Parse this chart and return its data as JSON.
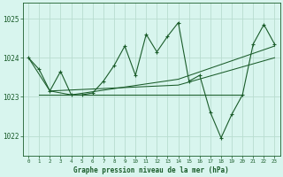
{
  "title": "Graphe pression niveau de la mer (hPa)",
  "bg_color": "#d8f5ee",
  "grid_color": "#b8ddd0",
  "line_color": "#1a5c2a",
  "x_min": -0.5,
  "x_max": 23.5,
  "y_min": 1021.5,
  "y_max": 1025.4,
  "yticks": [
    1022,
    1023,
    1024,
    1025
  ],
  "xticks": [
    0,
    1,
    2,
    3,
    4,
    5,
    6,
    7,
    8,
    9,
    10,
    11,
    12,
    13,
    14,
    15,
    16,
    17,
    18,
    19,
    20,
    21,
    22,
    23
  ],
  "main_series": [
    1024.0,
    1023.7,
    1023.15,
    1023.65,
    1023.05,
    1023.05,
    1023.1,
    1023.4,
    1023.8,
    1024.3,
    1023.55,
    1024.6,
    1024.15,
    1024.55,
    1024.9,
    1023.4,
    1023.55,
    1022.6,
    1021.95,
    1022.55,
    1023.05,
    1024.35,
    1024.85,
    1024.35
  ],
  "trend1_x": [
    0,
    2,
    14,
    23
  ],
  "trend1_y": [
    1024.0,
    1023.15,
    1023.3,
    1024.0
  ],
  "trend2_x": [
    2,
    4,
    14,
    23
  ],
  "trend2_y": [
    1023.15,
    1023.05,
    1023.45,
    1024.3
  ],
  "trend3_x": [
    1,
    4,
    14,
    20
  ],
  "trend3_y": [
    1023.05,
    1023.05,
    1023.05,
    1023.05
  ]
}
